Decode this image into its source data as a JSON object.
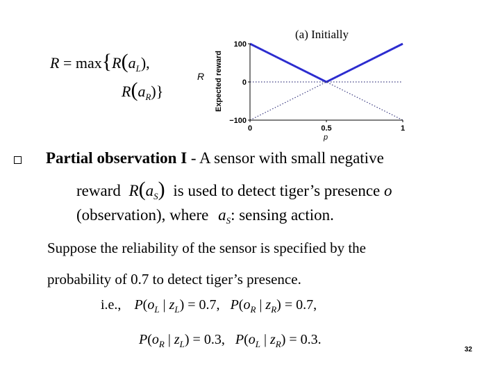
{
  "formula_r": {
    "lhs": "R",
    "eq": "=",
    "max": "max",
    "lbrace": "{",
    "r_fn1": "R",
    "a1": "a",
    "sub1": "L",
    "close1": "),",
    "r_fn2": "R",
    "a2": "a",
    "sub2": "R",
    "close2": ")}"
  },
  "plot": {
    "title": "(a) Initially",
    "side_label": "R",
    "ylabel": "Expected reward",
    "xlabel": "p"
  },
  "chart_data": {
    "type": "line",
    "title": "(a) Initially",
    "xlabel": "p",
    "ylabel": "Expected reward",
    "xlim": [
      0,
      1
    ],
    "ylim": [
      -100,
      100
    ],
    "xticks": [
      "0",
      "0.5",
      "1"
    ],
    "yticks": [
      "100",
      "0",
      "−100"
    ],
    "series": [
      {
        "style": "solid",
        "color": "#2a2ae0",
        "x": [
          0,
          0.5,
          1
        ],
        "y": [
          100,
          0,
          100
        ]
      },
      {
        "style": "dotted",
        "color": "#3a3a80",
        "x": [
          0,
          1
        ],
        "y": [
          100,
          -100
        ]
      },
      {
        "style": "dotted",
        "color": "#3a3a80",
        "x": [
          0,
          1
        ],
        "y": [
          -100,
          100
        ]
      },
      {
        "style": "dotted",
        "color": "#3a3a80",
        "x": [
          0,
          1
        ],
        "y": [
          0,
          0
        ]
      }
    ]
  },
  "bullet": {
    "bold_part": "Partial observation I",
    "rest_part": " - A sensor with small negative",
    "line2_start": "reward",
    "line2_r": "R",
    "line2_a": "a",
    "line2_sub": "S",
    "line2_close": ")",
    "line2_end_pre": "is used to detect tiger’s presence ",
    "line2_o": "o",
    "line3_start": "(observation), where",
    "line3_a": "a",
    "line3_sub": "S",
    "line3_end": ": sensing action."
  },
  "paragraph": {
    "line1": "Suppose the reliability of the sensor is specified by the",
    "line2": "probability of 0.7 to detect tiger’s presence."
  },
  "equations": {
    "ie": "i.e.,",
    "eq1": {
      "p": "P",
      "o": "o",
      "osub": "L",
      "bar": "|",
      "z": "z",
      "zsub": "L",
      "val": ") = 0.7,"
    },
    "eq2": {
      "p": "P",
      "o": "o",
      "osub": "R",
      "bar": "|",
      "z": "z",
      "zsub": "R",
      "val": ") = 0.7,"
    },
    "eq3": {
      "p": "P",
      "o": "o",
      "osub": "R",
      "bar": "|",
      "z": "z",
      "zsub": "L",
      "val": ") = 0.3,"
    },
    "eq4": {
      "p": "P",
      "o": "o",
      "osub": "L",
      "bar": "|",
      "z": "z",
      "zsub": "R",
      "val": ") = 0.3."
    }
  },
  "page_number": "32"
}
